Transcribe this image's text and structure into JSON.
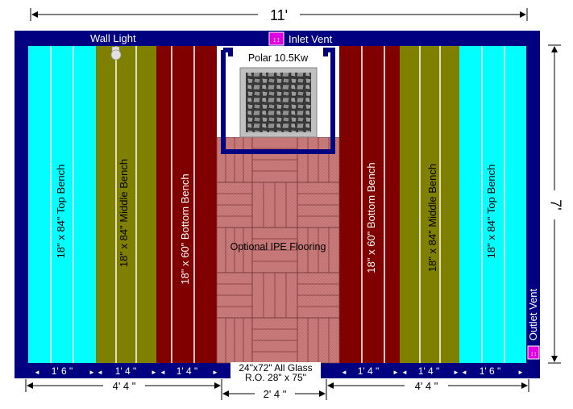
{
  "dimensions": {
    "overall_width": "11'",
    "overall_depth": "7'",
    "left_section": "4' 4 \"",
    "center_section": "2' 4 \"",
    "right_section": "4' 4 \""
  },
  "top_labels": {
    "wall_light": "Wall Light",
    "inlet_vent": "Inlet Vent"
  },
  "side_labels": {
    "outlet_vent": "Outlet Vent"
  },
  "heater": {
    "label": "Polar 10.5Kw"
  },
  "floor": {
    "label": "Optional IPE Flooring"
  },
  "door": {
    "line1": "24\"x72\" All Glass",
    "line2": "R.O. 28\" x 75\""
  },
  "benches": [
    {
      "label": "18\" x 84\" Top Bench",
      "color": "#00ffff",
      "width": "1' 6 \""
    },
    {
      "label": "18\" x 84\" Middle Bench",
      "color": "#808000",
      "width": "1' 4 \""
    },
    {
      "label": "18\" x 60\" Bottom Bench",
      "color": "#800000",
      "width": "1' 4 \""
    },
    {
      "label": "18\" x 60\" Bottom Bench",
      "color": "#800000",
      "width": "1' 4 \""
    },
    {
      "label": "18\" x 84\" Middle Bench",
      "color": "#808000",
      "width": "1' 4 \""
    },
    {
      "label": "18\" x 84\" Top Bench",
      "color": "#00ffff",
      "width": "1' 6 \""
    }
  ],
  "colors": {
    "wall": "#000080",
    "floor": "#c97b7b",
    "vent": "#e100e1"
  }
}
